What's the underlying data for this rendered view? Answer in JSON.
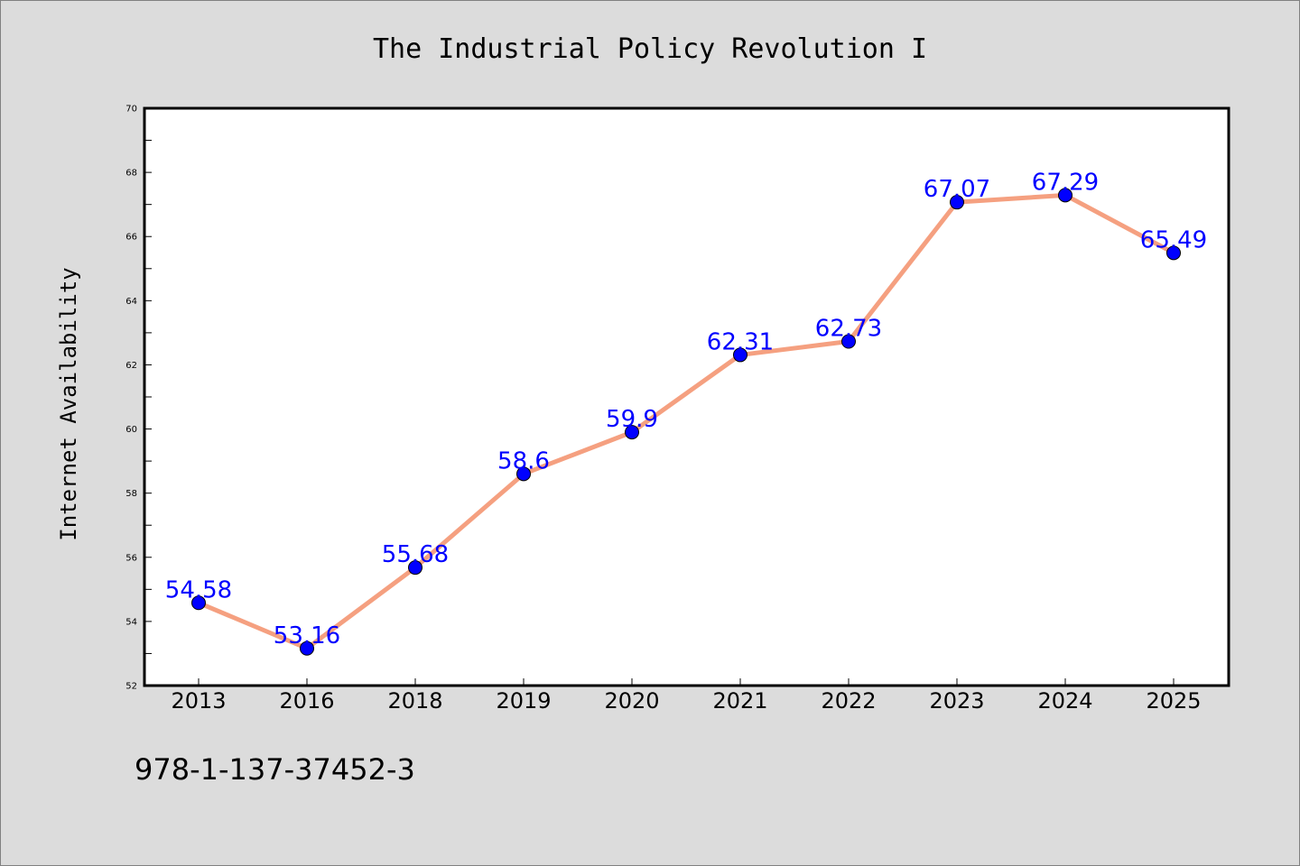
{
  "colors": {
    "background": "#dcdcdc",
    "plot_background": "#ffffff",
    "line": "#f5a080",
    "marker": "#0000ff",
    "data_label": "#0000ff"
  },
  "footer": {
    "isbn": "978-1-137-37452-3"
  },
  "chart_data": {
    "type": "line",
    "title": "The Industrial Policy Revolution I",
    "xlabel": "",
    "ylabel": "Internet Availability",
    "categories": [
      "2013",
      "2016",
      "2018",
      "2019",
      "2020",
      "2021",
      "2022",
      "2023",
      "2024",
      "2025"
    ],
    "series": [
      {
        "values": [
          54.58,
          53.16,
          55.68,
          58.6,
          59.9,
          62.31,
          62.73,
          67.07,
          67.29,
          65.49
        ],
        "labels": [
          "54.58",
          "53.16",
          "55.68",
          "58.6",
          "59.9",
          "62.31",
          "62.73",
          "67.07",
          "67.29",
          "65.49"
        ]
      }
    ],
    "ylim": [
      52,
      70
    ],
    "yticks": [
      52,
      54,
      56,
      58,
      60,
      62,
      64,
      66,
      68,
      70
    ],
    "ytick_labels": [
      "52",
      "54",
      "56",
      "58",
      "60",
      "62",
      "64",
      "66",
      "68",
      "70"
    ],
    "grid": false,
    "legend": "none"
  }
}
